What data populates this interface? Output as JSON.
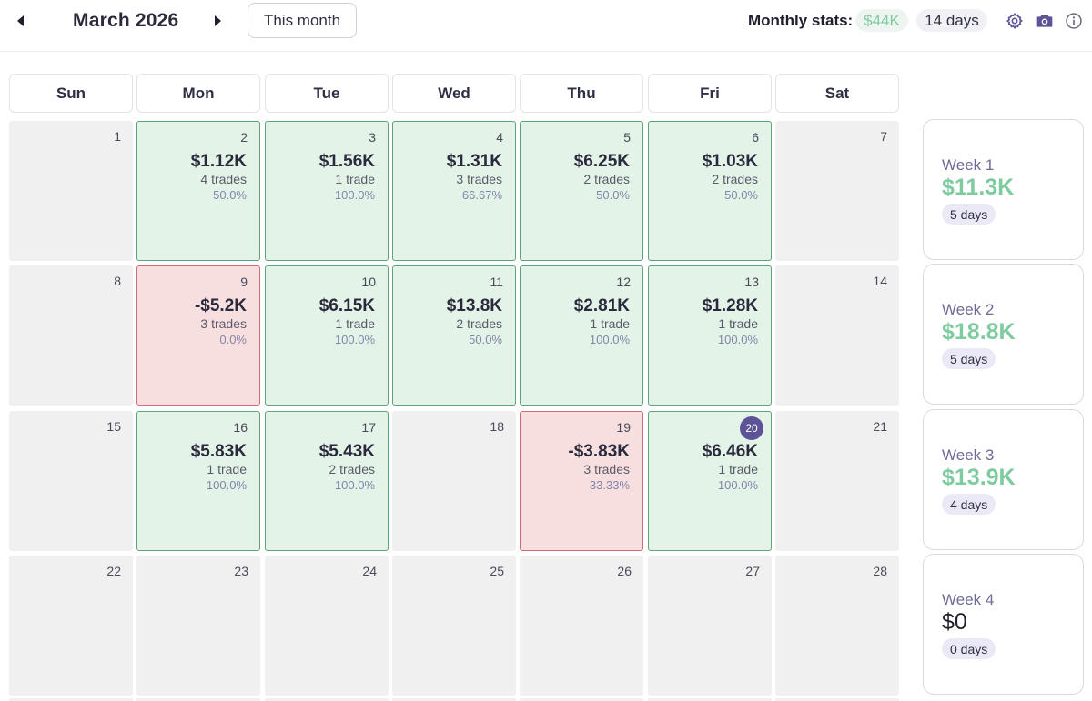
{
  "header": {
    "month_title": "March 2026",
    "this_month_label": "This month",
    "stats_label": "Monthly stats:",
    "monthly_total": "$44K",
    "monthly_days": "14 days"
  },
  "colors": {
    "profit_bg": "#e3f3e8",
    "profit_border": "#5ea37a",
    "loss_bg": "#f7dfe0",
    "loss_border": "#d36b73",
    "accent": "#5d5497",
    "positive_text": "#7ecba0"
  },
  "icons": {
    "prev": "triangle-left-icon",
    "next": "triangle-right-icon",
    "settings": "gear-icon",
    "screenshot": "camera-icon",
    "info": "info-icon"
  },
  "weekdays": [
    "Sun",
    "Mon",
    "Tue",
    "Wed",
    "Thu",
    "Fri",
    "Sat"
  ],
  "weeks": [
    {
      "days": [
        {
          "num": "1"
        },
        {
          "num": "2",
          "status": "profit",
          "pnl": "$1.12K",
          "trades": "4 trades",
          "winrate": "50.0%"
        },
        {
          "num": "3",
          "status": "profit",
          "pnl": "$1.56K",
          "trades": "1 trade",
          "winrate": "100.0%"
        },
        {
          "num": "4",
          "status": "profit",
          "pnl": "$1.31K",
          "trades": "3 trades",
          "winrate": "66.67%"
        },
        {
          "num": "5",
          "status": "profit",
          "pnl": "$6.25K",
          "trades": "2 trades",
          "winrate": "50.0%"
        },
        {
          "num": "6",
          "status": "profit",
          "pnl": "$1.03K",
          "trades": "2 trades",
          "winrate": "50.0%"
        },
        {
          "num": "7"
        }
      ],
      "summary": {
        "label": "Week 1",
        "total": "$11.3K",
        "days": "5 days"
      }
    },
    {
      "days": [
        {
          "num": "8"
        },
        {
          "num": "9",
          "status": "loss",
          "pnl": "-$5.2K",
          "trades": "3 trades",
          "winrate": "0.0%"
        },
        {
          "num": "10",
          "status": "profit",
          "pnl": "$6.15K",
          "trades": "1 trade",
          "winrate": "100.0%"
        },
        {
          "num": "11",
          "status": "profit",
          "pnl": "$13.8K",
          "trades": "2 trades",
          "winrate": "50.0%"
        },
        {
          "num": "12",
          "status": "profit",
          "pnl": "$2.81K",
          "trades": "1 trade",
          "winrate": "100.0%"
        },
        {
          "num": "13",
          "status": "profit",
          "pnl": "$1.28K",
          "trades": "1 trade",
          "winrate": "100.0%"
        },
        {
          "num": "14"
        }
      ],
      "summary": {
        "label": "Week 2",
        "total": "$18.8K",
        "days": "5 days"
      }
    },
    {
      "days": [
        {
          "num": "15"
        },
        {
          "num": "16",
          "status": "profit",
          "pnl": "$5.83K",
          "trades": "1 trade",
          "winrate": "100.0%"
        },
        {
          "num": "17",
          "status": "profit",
          "pnl": "$5.43K",
          "trades": "2 trades",
          "winrate": "100.0%"
        },
        {
          "num": "18"
        },
        {
          "num": "19",
          "status": "loss",
          "pnl": "-$3.83K",
          "trades": "3 trades",
          "winrate": "33.33%"
        },
        {
          "num": "20",
          "status": "profit",
          "today": true,
          "pnl": "$6.46K",
          "trades": "1 trade",
          "winrate": "100.0%"
        },
        {
          "num": "21"
        }
      ],
      "summary": {
        "label": "Week 3",
        "total": "$13.9K",
        "days": "4 days"
      }
    },
    {
      "days": [
        {
          "num": "22"
        },
        {
          "num": "23"
        },
        {
          "num": "24"
        },
        {
          "num": "25"
        },
        {
          "num": "26"
        },
        {
          "num": "27"
        },
        {
          "num": "28"
        }
      ],
      "summary": {
        "label": "Week 4",
        "total": "$0",
        "days": "0 days",
        "zero": true
      }
    }
  ]
}
